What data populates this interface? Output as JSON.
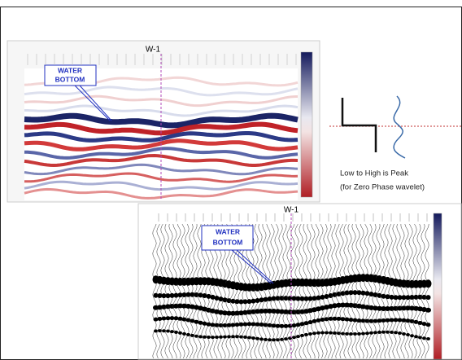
{
  "panels": [
    {
      "title": "W-1",
      "annotation": [
        "WATER",
        "BOTTOM"
      ]
    },
    {
      "title": "W-1",
      "annotation": [
        "WATER",
        "BOTTOM"
      ]
    }
  ],
  "wavelet_note": [
    "Low to High is Peak",
    "(for Zero Phase wavelet)"
  ]
}
